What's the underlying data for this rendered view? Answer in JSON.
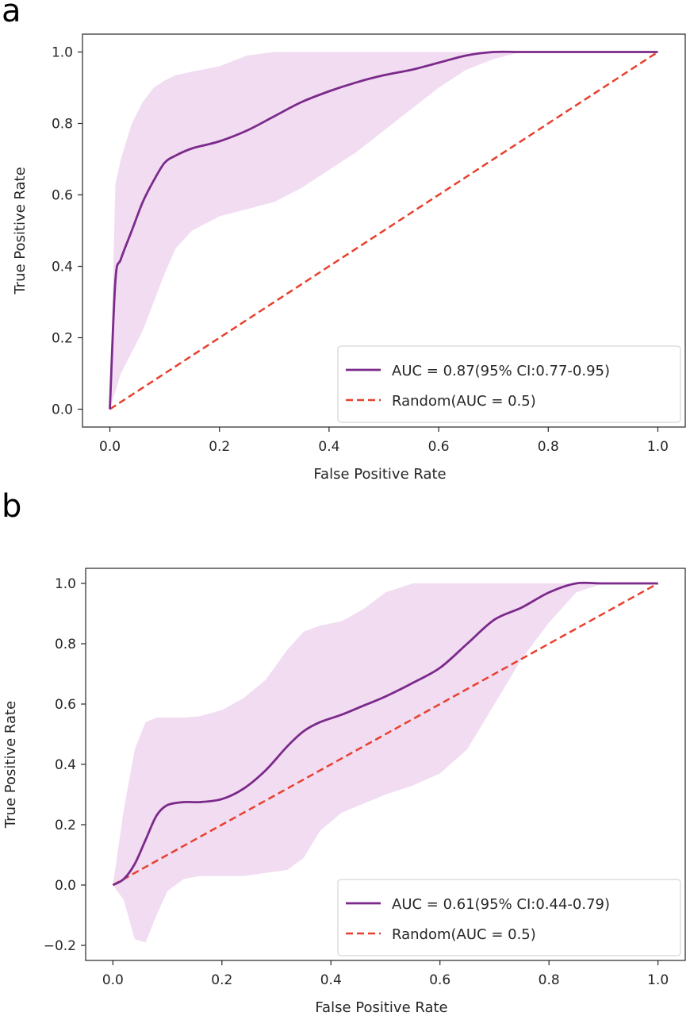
{
  "panels": [
    {
      "letter": "a"
    },
    {
      "letter": "b"
    }
  ],
  "colors": {
    "roc_line": "#7b2a8b",
    "ci_band": "#e6bfe6",
    "random_line": "#e8402e",
    "axis": "#262626"
  },
  "chart_data": [
    {
      "type": "line",
      "xlabel": "False Positive Rate",
      "ylabel": "True Positive Rate",
      "xlim": [
        -0.05,
        1.05
      ],
      "ylim": [
        -0.05,
        1.05
      ],
      "xticks": [
        0.0,
        0.2,
        0.4,
        0.6,
        0.8,
        1.0
      ],
      "yticks": [
        0.0,
        0.2,
        0.4,
        0.6,
        0.8,
        1.0
      ],
      "legend_position": "lower-right",
      "series": [
        {
          "name": "AUC = 0.87(95% CI:0.77-0.95)",
          "style": "solid",
          "x": [
            0.0,
            0.01,
            0.02,
            0.04,
            0.06,
            0.08,
            0.1,
            0.12,
            0.15,
            0.2,
            0.25,
            0.3,
            0.35,
            0.4,
            0.45,
            0.5,
            0.55,
            0.6,
            0.65,
            0.7,
            0.75,
            0.8,
            0.9,
            1.0
          ],
          "y": [
            0.0,
            0.36,
            0.42,
            0.5,
            0.58,
            0.64,
            0.69,
            0.71,
            0.73,
            0.75,
            0.78,
            0.82,
            0.86,
            0.89,
            0.915,
            0.935,
            0.95,
            0.97,
            0.99,
            1.0,
            1.0,
            1.0,
            1.0,
            1.0
          ],
          "ci_lower": [
            0.0,
            0.05,
            0.1,
            0.16,
            0.22,
            0.3,
            0.38,
            0.45,
            0.5,
            0.54,
            0.56,
            0.58,
            0.62,
            0.67,
            0.72,
            0.78,
            0.84,
            0.9,
            0.95,
            0.98,
            1.0,
            1.0,
            1.0,
            1.0
          ],
          "ci_upper": [
            0.0,
            0.63,
            0.7,
            0.8,
            0.86,
            0.9,
            0.92,
            0.935,
            0.945,
            0.96,
            0.99,
            1.0,
            1.0,
            1.0,
            1.0,
            1.0,
            1.0,
            1.0,
            1.0,
            1.0,
            1.0,
            1.0,
            1.0,
            1.0
          ]
        },
        {
          "name": "Random(AUC = 0.5)",
          "style": "dashed",
          "x": [
            0.0,
            1.0
          ],
          "y": [
            0.0,
            1.0
          ]
        }
      ]
    },
    {
      "type": "line",
      "xlabel": "False Positive Rate",
      "ylabel": "True Positive Rate",
      "xlim": [
        -0.05,
        1.05
      ],
      "ylim": [
        -0.25,
        1.05
      ],
      "xticks": [
        0.0,
        0.2,
        0.4,
        0.6,
        0.8,
        1.0
      ],
      "yticks": [
        -0.2,
        0.0,
        0.2,
        0.4,
        0.6,
        0.8,
        1.0
      ],
      "legend_position": "lower-right",
      "series": [
        {
          "name": "AUC = 0.61(95% CI:0.44-0.79)",
          "style": "solid",
          "x": [
            0.0,
            0.02,
            0.04,
            0.06,
            0.08,
            0.1,
            0.13,
            0.16,
            0.2,
            0.24,
            0.28,
            0.32,
            0.35,
            0.38,
            0.42,
            0.46,
            0.5,
            0.55,
            0.6,
            0.65,
            0.7,
            0.75,
            0.8,
            0.85,
            0.9,
            1.0
          ],
          "y": [
            0.0,
            0.02,
            0.07,
            0.15,
            0.23,
            0.265,
            0.275,
            0.275,
            0.285,
            0.32,
            0.38,
            0.46,
            0.51,
            0.54,
            0.565,
            0.595,
            0.625,
            0.67,
            0.72,
            0.8,
            0.88,
            0.92,
            0.97,
            1.0,
            1.0,
            1.0
          ],
          "ci_lower": [
            0.0,
            -0.05,
            -0.18,
            -0.19,
            -0.1,
            -0.02,
            0.02,
            0.03,
            0.03,
            0.03,
            0.04,
            0.05,
            0.09,
            0.18,
            0.24,
            0.27,
            0.3,
            0.33,
            0.37,
            0.45,
            0.6,
            0.75,
            0.87,
            0.97,
            1.0,
            1.0
          ],
          "ci_upper": [
            0.0,
            0.25,
            0.45,
            0.54,
            0.555,
            0.555,
            0.555,
            0.56,
            0.58,
            0.62,
            0.68,
            0.78,
            0.84,
            0.86,
            0.875,
            0.915,
            0.97,
            1.0,
            1.0,
            1.0,
            1.0,
            1.0,
            1.0,
            1.0,
            1.0,
            1.0
          ]
        },
        {
          "name": "Random(AUC = 0.5)",
          "style": "dashed",
          "x": [
            0.0,
            1.0
          ],
          "y": [
            0.0,
            1.0
          ]
        }
      ]
    }
  ]
}
